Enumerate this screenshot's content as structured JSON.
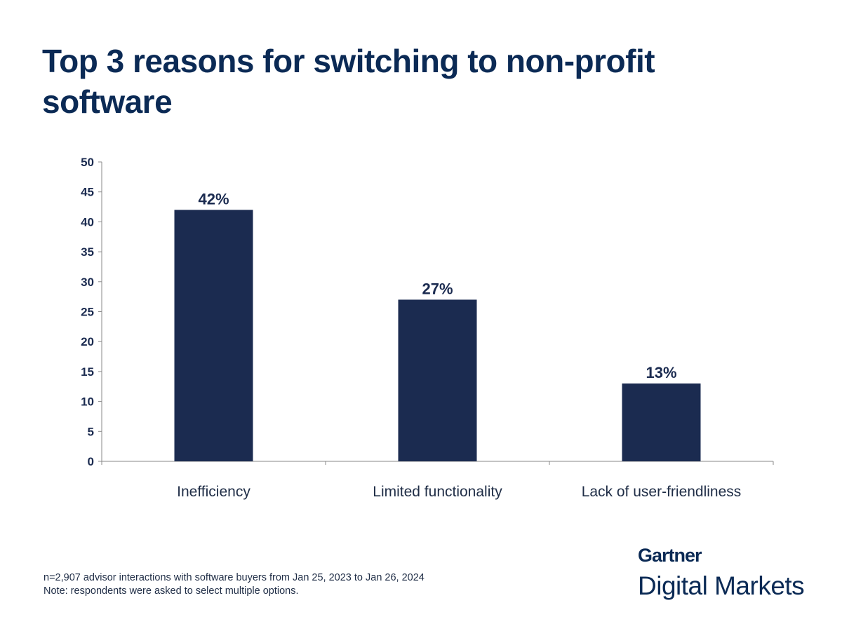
{
  "title": "Top 3 reasons for switching to non-profit software",
  "chart_data": {
    "type": "bar",
    "title": "Top 3 reasons for switching to non-profit software",
    "categories": [
      "Inefficiency",
      "Limited functionality",
      "Lack of user-friendliness"
    ],
    "values": [
      42,
      27,
      13
    ],
    "data_labels": [
      "42%",
      "27%",
      "13%"
    ],
    "xlabel": "",
    "ylabel": "",
    "ylim": [
      0,
      50
    ],
    "yticks": [
      0,
      5,
      10,
      15,
      20,
      25,
      30,
      35,
      40,
      45,
      50
    ],
    "grid": false,
    "legend": "none",
    "bar_color": "#1b2b50"
  },
  "footnotes": [
    "n=2,907 advisor interactions with software buyers from Jan 25, 2023 to Jan 26, 2024",
    "Note: respondents were asked to select multiple options."
  ],
  "logo": {
    "line1": "Gartner",
    "line2": "Digital Markets"
  }
}
